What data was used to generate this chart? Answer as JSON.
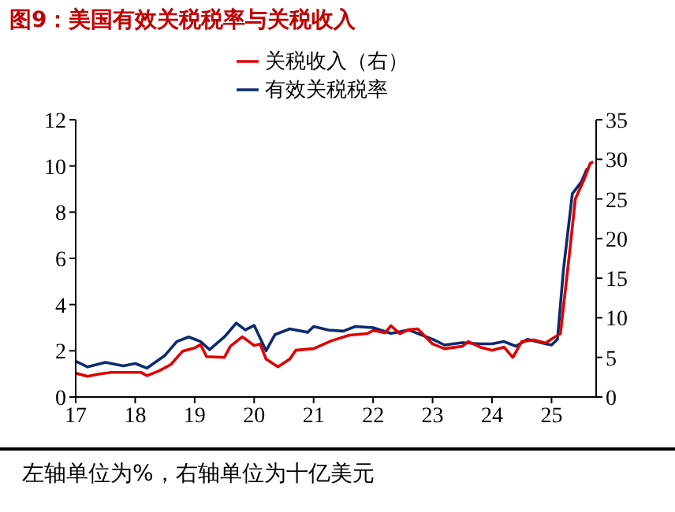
{
  "chart_data": {
    "type": "line",
    "title": "图9：美国有效关税税率与关税收入",
    "annotations": [
      "左轴单位为%，右轴单位为十亿美元"
    ],
    "xlim": [
      17,
      25.75
    ],
    "xticks": [
      17,
      18,
      19,
      20,
      21,
      22,
      23,
      24,
      25
    ],
    "ylim": [
      0,
      12
    ],
    "yticks": [
      0,
      2,
      4,
      6,
      8,
      10,
      12
    ],
    "y2lim": [
      0,
      35
    ],
    "y2ticks": [
      0,
      5,
      10,
      15,
      20,
      25,
      30,
      35
    ],
    "legend": "top",
    "grid": false,
    "marker": "none",
    "line_style": "solid",
    "series": [
      {
        "name": "有效关税税率",
        "color": "#0c2a6e",
        "x": [
          17.0,
          17.2,
          17.5,
          17.8,
          18.0,
          18.2,
          18.5,
          18.7,
          18.9,
          19.1,
          19.25,
          19.5,
          19.7,
          19.85,
          20.0,
          20.2,
          20.35,
          20.6,
          20.9,
          21.0,
          21.25,
          21.5,
          21.7,
          22.0,
          22.3,
          22.6,
          22.8,
          23.0,
          23.2,
          23.5,
          23.8,
          24.0,
          24.2,
          24.4,
          24.6,
          24.9,
          25.0,
          25.1,
          25.2,
          25.35,
          25.5,
          25.6
        ],
        "values": [
          1.55,
          1.3,
          1.5,
          1.35,
          1.45,
          1.25,
          1.8,
          2.4,
          2.6,
          2.4,
          2.05,
          2.6,
          3.2,
          2.9,
          3.1,
          2.0,
          2.7,
          2.95,
          2.8,
          3.05,
          2.9,
          2.85,
          3.05,
          3.0,
          2.75,
          2.9,
          2.7,
          2.5,
          2.25,
          2.35,
          2.3,
          2.3,
          2.4,
          2.2,
          2.5,
          2.3,
          2.25,
          2.5,
          5.5,
          8.8,
          9.3,
          9.9
        ]
      },
      {
        "name": "关税收入（右）",
        "color": "#e00000",
        "axis": "y2",
        "x": [
          17.0,
          17.2,
          17.4,
          17.6,
          17.9,
          18.1,
          18.2,
          18.4,
          18.6,
          18.8,
          19.0,
          19.1,
          19.2,
          19.5,
          19.6,
          19.8,
          20.0,
          20.1,
          20.2,
          20.4,
          20.6,
          20.7,
          21.0,
          21.3,
          21.6,
          21.9,
          22.0,
          22.2,
          22.3,
          22.45,
          22.6,
          22.75,
          23.0,
          23.2,
          23.5,
          23.6,
          23.8,
          24.0,
          24.2,
          24.35,
          24.5,
          24.7,
          24.9,
          25.0,
          25.15,
          25.3,
          25.4,
          25.55,
          25.65,
          25.7
        ],
        "values": [
          3.0,
          2.6,
          2.9,
          3.1,
          3.1,
          3.1,
          2.7,
          3.3,
          4.1,
          5.8,
          6.2,
          6.6,
          5.1,
          5.0,
          6.4,
          7.6,
          6.5,
          6.7,
          4.8,
          3.8,
          4.8,
          5.9,
          6.1,
          7.1,
          7.8,
          8.0,
          8.4,
          8.1,
          9.0,
          8.0,
          8.5,
          8.6,
          6.7,
          6.1,
          6.4,
          7.0,
          6.3,
          5.9,
          6.3,
          5.0,
          7.0,
          7.2,
          6.8,
          7.3,
          8.0,
          18.0,
          25.0,
          27.5,
          29.5,
          29.7
        ]
      }
    ]
  }
}
